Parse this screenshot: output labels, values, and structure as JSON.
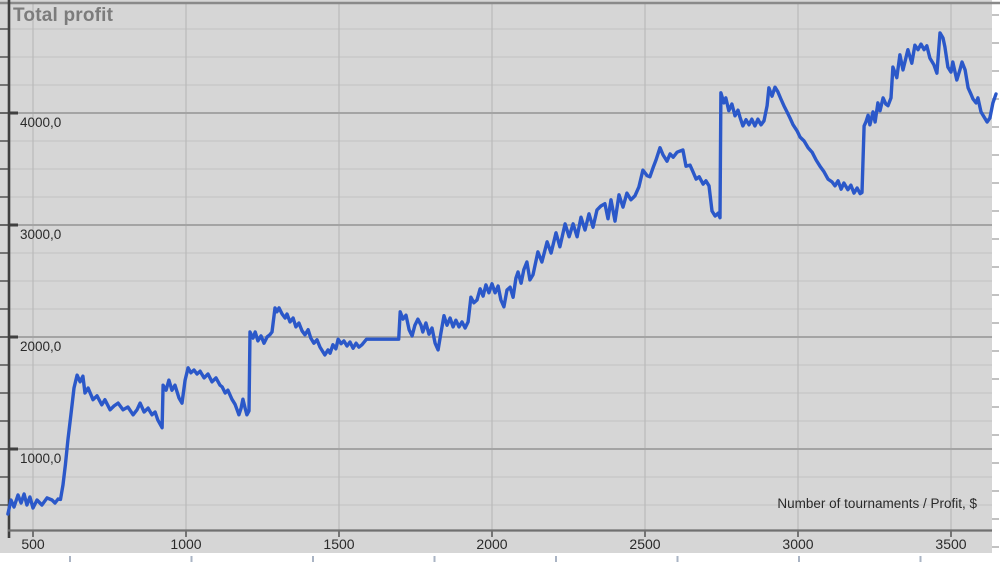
{
  "title": "Total profit",
  "axis_caption": "Number of tournaments / Profit, $",
  "colors": {
    "page": "#ffffff",
    "plot_background": "#d6d6d6",
    "line": "#2b58c9",
    "grid_major": "#a4a4a4",
    "grid_minor": "#c5c5c5",
    "grid_vertical": "#bcbcbc",
    "top_border": "#8a8a8a",
    "y_axis": "#3f3f3f",
    "x_axis": "#707070",
    "tick": "#4a4a4a",
    "edge_tick": "#a9a9a9",
    "bottom_edge_tick": "#aab4c4",
    "title_text": "#7c7c7c",
    "label_text": "#2a2a2a"
  },
  "chart_data": {
    "type": "line",
    "title": "Total profit",
    "xlabel": "Number of tournaments",
    "ylabel": "Profit, $",
    "caption": "Number of tournaments / Profit, $",
    "grid": true,
    "legend": false,
    "xlim": [
      420,
      3660
    ],
    "ylim": [
      70,
      4985
    ],
    "x_ticks": [
      500,
      1000,
      1500,
      2000,
      2500,
      3000,
      3500
    ],
    "x_tick_labels": [
      "500",
      "1000",
      "1500",
      "2000",
      "2500",
      "3000",
      "3500"
    ],
    "y_ticks": [
      1000,
      2000,
      3000,
      4000
    ],
    "y_tick_labels": [
      "1000,0",
      "2000,0",
      "3000,0",
      "4000,0"
    ],
    "y_minor_step": 250,
    "series": [
      {
        "name": "Total profit",
        "points": [
          [
            418,
            420
          ],
          [
            428,
            545
          ],
          [
            438,
            482
          ],
          [
            451,
            589
          ],
          [
            461,
            518
          ],
          [
            471,
            598
          ],
          [
            480,
            500
          ],
          [
            490,
            571
          ],
          [
            500,
            473
          ],
          [
            513,
            545
          ],
          [
            529,
            500
          ],
          [
            546,
            563
          ],
          [
            562,
            545
          ],
          [
            572,
            518
          ],
          [
            582,
            554
          ],
          [
            590,
            550
          ],
          [
            598,
            680
          ],
          [
            606,
            860
          ],
          [
            614,
            1080
          ],
          [
            624,
            1305
          ],
          [
            634,
            1545
          ],
          [
            644,
            1660
          ],
          [
            654,
            1600
          ],
          [
            663,
            1650
          ],
          [
            670,
            1500
          ],
          [
            680,
            1545
          ],
          [
            696,
            1440
          ],
          [
            709,
            1475
          ],
          [
            725,
            1395
          ],
          [
            735,
            1440
          ],
          [
            752,
            1350
          ],
          [
            765,
            1385
          ],
          [
            778,
            1410
          ],
          [
            794,
            1350
          ],
          [
            810,
            1375
          ],
          [
            827,
            1305
          ],
          [
            840,
            1350
          ],
          [
            850,
            1410
          ],
          [
            863,
            1330
          ],
          [
            876,
            1365
          ],
          [
            889,
            1305
          ],
          [
            899,
            1330
          ],
          [
            908,
            1260
          ],
          [
            922,
            1190
          ],
          [
            925,
            1570
          ],
          [
            935,
            1525
          ],
          [
            944,
            1615
          ],
          [
            954,
            1525
          ],
          [
            964,
            1570
          ],
          [
            977,
            1455
          ],
          [
            987,
            1410
          ],
          [
            997,
            1615
          ],
          [
            1007,
            1725
          ],
          [
            1016,
            1680
          ],
          [
            1026,
            1705
          ],
          [
            1036,
            1670
          ],
          [
            1046,
            1695
          ],
          [
            1059,
            1635
          ],
          [
            1072,
            1670
          ],
          [
            1085,
            1600
          ],
          [
            1098,
            1635
          ],
          [
            1111,
            1570
          ],
          [
            1118,
            1555
          ],
          [
            1128,
            1500
          ],
          [
            1137,
            1525
          ],
          [
            1150,
            1445
          ],
          [
            1160,
            1400
          ],
          [
            1167,
            1350
          ],
          [
            1173,
            1305
          ],
          [
            1180,
            1365
          ],
          [
            1186,
            1445
          ],
          [
            1193,
            1365
          ],
          [
            1199,
            1305
          ],
          [
            1206,
            1340
          ],
          [
            1209,
            2045
          ],
          [
            1219,
            1990
          ],
          [
            1226,
            2045
          ],
          [
            1235,
            1965
          ],
          [
            1245,
            2010
          ],
          [
            1255,
            1945
          ],
          [
            1265,
            2000
          ],
          [
            1274,
            2020
          ],
          [
            1281,
            2045
          ],
          [
            1291,
            2260
          ],
          [
            1297,
            2225
          ],
          [
            1304,
            2260
          ],
          [
            1314,
            2205
          ],
          [
            1324,
            2170
          ],
          [
            1330,
            2205
          ],
          [
            1340,
            2135
          ],
          [
            1350,
            2170
          ],
          [
            1359,
            2090
          ],
          [
            1369,
            2125
          ],
          [
            1379,
            2055
          ],
          [
            1389,
            2020
          ],
          [
            1399,
            2065
          ],
          [
            1408,
            1990
          ],
          [
            1418,
            1945
          ],
          [
            1428,
            1975
          ],
          [
            1438,
            1910
          ],
          [
            1448,
            1865
          ],
          [
            1454,
            1840
          ],
          [
            1464,
            1885
          ],
          [
            1471,
            1855
          ],
          [
            1480,
            1930
          ],
          [
            1490,
            1895
          ],
          [
            1497,
            1980
          ],
          [
            1507,
            1940
          ],
          [
            1516,
            1965
          ],
          [
            1526,
            1920
          ],
          [
            1536,
            1955
          ],
          [
            1546,
            1900
          ],
          [
            1556,
            1945
          ],
          [
            1565,
            1910
          ],
          [
            1575,
            1930
          ],
          [
            1590,
            1980
          ],
          [
            1695,
            1980
          ],
          [
            1700,
            2225
          ],
          [
            1709,
            2160
          ],
          [
            1719,
            2195
          ],
          [
            1729,
            2065
          ],
          [
            1739,
            2010
          ],
          [
            1748,
            2105
          ],
          [
            1758,
            2160
          ],
          [
            1768,
            2105
          ],
          [
            1774,
            2045
          ],
          [
            1784,
            2125
          ],
          [
            1794,
            2025
          ],
          [
            1804,
            2080
          ],
          [
            1814,
            1945
          ],
          [
            1824,
            1885
          ],
          [
            1833,
            2035
          ],
          [
            1843,
            2190
          ],
          [
            1853,
            2105
          ],
          [
            1863,
            2170
          ],
          [
            1873,
            2090
          ],
          [
            1882,
            2150
          ],
          [
            1892,
            2090
          ],
          [
            1902,
            2135
          ],
          [
            1912,
            2080
          ],
          [
            1922,
            2135
          ],
          [
            1931,
            2355
          ],
          [
            1941,
            2305
          ],
          [
            1951,
            2330
          ],
          [
            1961,
            2430
          ],
          [
            1971,
            2365
          ],
          [
            1980,
            2465
          ],
          [
            1990,
            2395
          ],
          [
            2000,
            2475
          ],
          [
            2010,
            2395
          ],
          [
            2020,
            2455
          ],
          [
            2029,
            2330
          ],
          [
            2039,
            2270
          ],
          [
            2049,
            2420
          ],
          [
            2059,
            2445
          ],
          [
            2069,
            2355
          ],
          [
            2078,
            2525
          ],
          [
            2085,
            2580
          ],
          [
            2095,
            2480
          ],
          [
            2104,
            2600
          ],
          [
            2114,
            2670
          ],
          [
            2124,
            2510
          ],
          [
            2134,
            2555
          ],
          [
            2150,
            2760
          ],
          [
            2163,
            2670
          ],
          [
            2180,
            2850
          ],
          [
            2193,
            2750
          ],
          [
            2209,
            2930
          ],
          [
            2222,
            2805
          ],
          [
            2239,
            3010
          ],
          [
            2252,
            2895
          ],
          [
            2265,
            3010
          ],
          [
            2278,
            2895
          ],
          [
            2291,
            3070
          ],
          [
            2304,
            2955
          ],
          [
            2317,
            3100
          ],
          [
            2330,
            2980
          ],
          [
            2343,
            3135
          ],
          [
            2356,
            3170
          ],
          [
            2369,
            3190
          ],
          [
            2379,
            3055
          ],
          [
            2389,
            3225
          ],
          [
            2402,
            3035
          ],
          [
            2415,
            3270
          ],
          [
            2428,
            3160
          ],
          [
            2441,
            3285
          ],
          [
            2454,
            3225
          ],
          [
            2467,
            3260
          ],
          [
            2480,
            3340
          ],
          [
            2493,
            3490
          ],
          [
            2507,
            3440
          ],
          [
            2516,
            3430
          ],
          [
            2526,
            3510
          ],
          [
            2536,
            3580
          ],
          [
            2549,
            3690
          ],
          [
            2559,
            3625
          ],
          [
            2572,
            3570
          ],
          [
            2582,
            3635
          ],
          [
            2592,
            3605
          ],
          [
            2605,
            3650
          ],
          [
            2614,
            3660
          ],
          [
            2624,
            3670
          ],
          [
            2634,
            3525
          ],
          [
            2647,
            3535
          ],
          [
            2657,
            3475
          ],
          [
            2667,
            3410
          ],
          [
            2677,
            3430
          ],
          [
            2690,
            3365
          ],
          [
            2699,
            3395
          ],
          [
            2709,
            3350
          ],
          [
            2719,
            3125
          ],
          [
            2729,
            3080
          ],
          [
            2739,
            3105
          ],
          [
            2745,
            3065
          ],
          [
            2748,
            4180
          ],
          [
            2758,
            4090
          ],
          [
            2764,
            4135
          ],
          [
            2774,
            4020
          ],
          [
            2784,
            4080
          ],
          [
            2794,
            3975
          ],
          [
            2804,
            4025
          ],
          [
            2810,
            3965
          ],
          [
            2820,
            3885
          ],
          [
            2830,
            3940
          ],
          [
            2840,
            3895
          ],
          [
            2849,
            3945
          ],
          [
            2859,
            3885
          ],
          [
            2869,
            3945
          ],
          [
            2879,
            3895
          ],
          [
            2889,
            3930
          ],
          [
            2899,
            4065
          ],
          [
            2905,
            4225
          ],
          [
            2915,
            4150
          ],
          [
            2925,
            4230
          ],
          [
            2934,
            4190
          ],
          [
            2944,
            4125
          ],
          [
            2954,
            4065
          ],
          [
            2964,
            4010
          ],
          [
            2974,
            3955
          ],
          [
            2984,
            3895
          ],
          [
            2997,
            3840
          ],
          [
            3007,
            3785
          ],
          [
            3020,
            3750
          ],
          [
            3033,
            3690
          ],
          [
            3046,
            3650
          ],
          [
            3059,
            3580
          ],
          [
            3072,
            3525
          ],
          [
            3085,
            3475
          ],
          [
            3098,
            3410
          ],
          [
            3111,
            3385
          ],
          [
            3121,
            3350
          ],
          [
            3131,
            3395
          ],
          [
            3141,
            3320
          ],
          [
            3150,
            3375
          ],
          [
            3163,
            3315
          ],
          [
            3173,
            3355
          ],
          [
            3183,
            3285
          ],
          [
            3193,
            3330
          ],
          [
            3203,
            3280
          ],
          [
            3209,
            3290
          ],
          [
            3216,
            3885
          ],
          [
            3222,
            3920
          ],
          [
            3229,
            3980
          ],
          [
            3235,
            3895
          ],
          [
            3245,
            4010
          ],
          [
            3252,
            3920
          ],
          [
            3261,
            4090
          ],
          [
            3268,
            4020
          ],
          [
            3278,
            4135
          ],
          [
            3287,
            4080
          ],
          [
            3294,
            4065
          ],
          [
            3304,
            4135
          ],
          [
            3310,
            4410
          ],
          [
            3323,
            4315
          ],
          [
            3333,
            4520
          ],
          [
            3343,
            4385
          ],
          [
            3359,
            4565
          ],
          [
            3372,
            4445
          ],
          [
            3382,
            4605
          ],
          [
            3392,
            4565
          ],
          [
            3402,
            4615
          ],
          [
            3412,
            4565
          ],
          [
            3421,
            4600
          ],
          [
            3431,
            4490
          ],
          [
            3444,
            4430
          ],
          [
            3454,
            4355
          ],
          [
            3464,
            4715
          ],
          [
            3474,
            4670
          ],
          [
            3480,
            4590
          ],
          [
            3490,
            4410
          ],
          [
            3500,
            4365
          ],
          [
            3506,
            4455
          ],
          [
            3519,
            4295
          ],
          [
            3529,
            4385
          ],
          [
            3536,
            4455
          ],
          [
            3546,
            4385
          ],
          [
            3556,
            4225
          ],
          [
            3565,
            4170
          ],
          [
            3572,
            4125
          ],
          [
            3582,
            4090
          ],
          [
            3588,
            4135
          ],
          [
            3598,
            4010
          ],
          [
            3608,
            3965
          ],
          [
            3618,
            3920
          ],
          [
            3627,
            3955
          ],
          [
            3637,
            4090
          ],
          [
            3647,
            4170
          ]
        ]
      }
    ]
  }
}
